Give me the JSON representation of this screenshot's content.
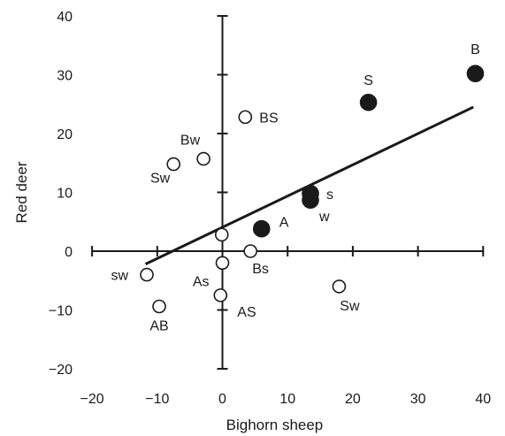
{
  "chart_data": {
    "type": "scatter",
    "xlabel": "Bighorn sheep",
    "ylabel": "Red deer",
    "xlim": [
      -20,
      40
    ],
    "ylim": [
      -20,
      40
    ],
    "x_ticks": [
      "−20",
      "−10",
      "0",
      "10",
      "20",
      "30",
      "40"
    ],
    "y_ticks": [
      "−20",
      "−10",
      "0",
      "10",
      "20",
      "30",
      "40"
    ],
    "grid": false,
    "axes_through_origin": true,
    "points": [
      {
        "label": "B",
        "x": 38.8,
        "y": 30.2,
        "filled": true
      },
      {
        "label": "S",
        "x": 22.4,
        "y": 25.3,
        "filled": true
      },
      {
        "label": "s",
        "x": 13.5,
        "y": 9.8,
        "filled": true
      },
      {
        "label": "w",
        "x": 13.5,
        "y": 8.7,
        "filled": true
      },
      {
        "label": "A",
        "x": 6.0,
        "y": 3.8,
        "filled": true
      },
      {
        "label": "BS",
        "x": 3.5,
        "y": 22.8,
        "filled": false
      },
      {
        "label": "Bw",
        "x": -2.9,
        "y": 15.7,
        "filled": false
      },
      {
        "label": "Sw",
        "x": -7.5,
        "y": 14.8,
        "filled": false
      },
      {
        "label": "",
        "x": -0.1,
        "y": 2.8,
        "filled": false
      },
      {
        "label": "Bs",
        "x": 4.3,
        "y": 0.0,
        "filled": false
      },
      {
        "label": "As",
        "x": 0.0,
        "y": -2.0,
        "filled": false
      },
      {
        "label": "AS",
        "x": -0.3,
        "y": -7.5,
        "filled": false
      },
      {
        "label": "sw",
        "x": -11.6,
        "y": -4.0,
        "filled": false
      },
      {
        "label": "AB",
        "x": -9.7,
        "y": -9.4,
        "filled": false
      },
      {
        "label": "Sw",
        "x": 17.9,
        "y": -6.0,
        "filled": false
      }
    ],
    "regression_line": {
      "x": [
        -11.8,
        38.5
      ],
      "y": [
        -2.2,
        24.5
      ]
    },
    "colors": {
      "ink": "#1a1a1a",
      "background": "#ffffff"
    }
  }
}
